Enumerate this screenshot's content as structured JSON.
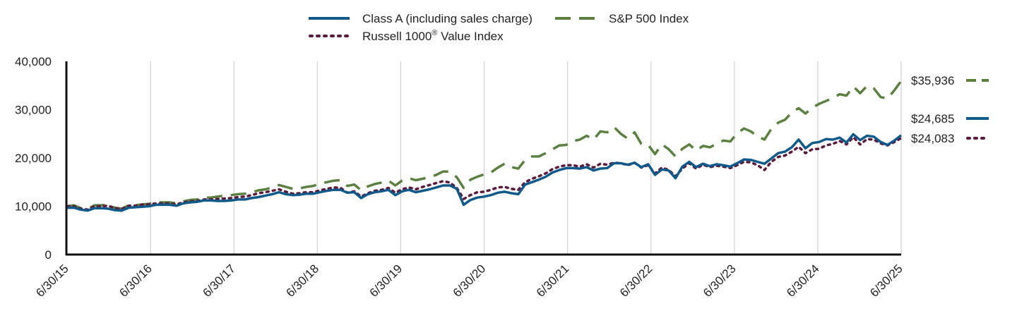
{
  "chart_data": {
    "type": "line",
    "title": "",
    "xlabel": "",
    "ylabel": "",
    "ylim": [
      0,
      40000
    ],
    "yticks": [
      0,
      10000,
      20000,
      30000,
      40000
    ],
    "ytick_labels": [
      "0",
      "10,000",
      "20,000",
      "30,000",
      "40,000"
    ],
    "xtick_labels": [
      "6/30/15",
      "6/30/16",
      "6/30/17",
      "6/30/18",
      "6/30/19",
      "6/30/20",
      "6/30/21",
      "6/30/22",
      "6/30/23",
      "6/30/24",
      "6/30/25"
    ],
    "x_period": "monthly",
    "grid": "vertical",
    "legend_position": "top-center",
    "series": [
      {
        "name": "Class A (including sales charge)",
        "color": "#0f5a8a",
        "style": "solid",
        "end_label": "$24,685",
        "values": [
          9700,
          9700,
          9300,
          9100,
          9600,
          9600,
          9500,
          9200,
          9100,
          9700,
          9800,
          9900,
          10000,
          10300,
          10300,
          10300,
          10100,
          10600,
          10800,
          10900,
          11200,
          11200,
          11100,
          11100,
          11200,
          11400,
          11400,
          11700,
          11900,
          12200,
          12500,
          12900,
          12500,
          12300,
          12400,
          12600,
          12600,
          12900,
          13200,
          13400,
          13400,
          12800,
          12900,
          11700,
          12500,
          12900,
          13100,
          13400,
          12300,
          13100,
          13400,
          12900,
          13200,
          13500,
          13900,
          14300,
          14300,
          13600,
          10300,
          11300,
          11800,
          12000,
          12300,
          12800,
          13000,
          12700,
          12500,
          14500,
          15000,
          15500,
          16100,
          17000,
          17500,
          17900,
          17900,
          17800,
          18100,
          17400,
          17800,
          17900,
          18900,
          18900,
          18600,
          19000,
          18100,
          18700,
          16500,
          17600,
          17400,
          15800,
          18200,
          19200,
          18100,
          18800,
          18300,
          18700,
          18500,
          18200,
          18900,
          19700,
          19600,
          19200,
          18800,
          19900,
          21000,
          21300,
          22200,
          23800,
          22000,
          23100,
          23300,
          23900,
          23800,
          24200,
          23200,
          24900,
          23700,
          24600,
          24400,
          23300,
          22700,
          23600,
          24685
        ]
      },
      {
        "name": "S&P 500 Index",
        "color": "#5b8040",
        "style": "dashed",
        "end_label": "$35,936",
        "values": [
          10000,
          10200,
          9600,
          9400,
          10200,
          10200,
          10300,
          9700,
          9500,
          10200,
          10200,
          10400,
          10500,
          10800,
          10800,
          10800,
          10600,
          11000,
          11300,
          11400,
          11800,
          11800,
          12000,
          12200,
          12300,
          12500,
          12600,
          12900,
          13300,
          13500,
          13900,
          14400,
          14000,
          13600,
          13700,
          14000,
          14200,
          14700,
          15000,
          15300,
          15400,
          14200,
          14500,
          13300,
          14100,
          14600,
          14900,
          15300,
          14300,
          15300,
          15800,
          15400,
          15700,
          16000,
          16500,
          17200,
          17200,
          16000,
          13800,
          15500,
          16100,
          16600,
          17000,
          18000,
          18800,
          18100,
          17800,
          19600,
          20300,
          20300,
          21000,
          21800,
          22600,
          22700,
          23500,
          23800,
          24600,
          23800,
          25500,
          25300,
          26400,
          25000,
          24000,
          25300,
          22900,
          22700,
          20800,
          22800,
          21800,
          20300,
          21900,
          22800,
          21500,
          22500,
          22200,
          22900,
          23600,
          23400,
          25100,
          26100,
          25500,
          24500,
          23800,
          26000,
          27300,
          27900,
          29400,
          30300,
          29200,
          30400,
          31200,
          31800,
          32400,
          33200,
          32900,
          34800,
          33400,
          34900,
          34400,
          32600,
          32300,
          34000,
          35936
        ]
      },
      {
        "name": "Russell 1000® Value Index",
        "color": "#5c1a3c",
        "style": "dotted",
        "end_label": "$24,083",
        "values": [
          10000,
          10000,
          9500,
          9300,
          10000,
          10000,
          10100,
          9600,
          9400,
          10100,
          10100,
          10300,
          10400,
          10600,
          10600,
          10600,
          10400,
          10800,
          11000,
          11100,
          11400,
          11400,
          11500,
          11600,
          11700,
          11900,
          12000,
          12300,
          12700,
          12900,
          13200,
          13500,
          13000,
          12600,
          12700,
          12900,
          12900,
          13300,
          13600,
          13900,
          13800,
          12800,
          13100,
          12000,
          12700,
          13200,
          13400,
          13800,
          12800,
          13500,
          13900,
          13500,
          14000,
          14400,
          14800,
          15200,
          14900,
          13800,
          11500,
          12300,
          12900,
          13000,
          13400,
          13900,
          14000,
          13600,
          13400,
          15000,
          15700,
          16200,
          16800,
          17700,
          18200,
          18500,
          18500,
          18200,
          18700,
          18000,
          18800,
          18600,
          19000,
          18900,
          18500,
          19000,
          18000,
          18500,
          16800,
          18000,
          17500,
          16200,
          17800,
          18900,
          17800,
          18600,
          18100,
          18400,
          18200,
          17900,
          18500,
          19200,
          19100,
          18500,
          17500,
          19200,
          20200,
          20500,
          21300,
          22300,
          21000,
          21800,
          21900,
          22600,
          22900,
          23500,
          22800,
          24300,
          22800,
          23900,
          23800,
          23000,
          22600,
          23300,
          24083
        ]
      }
    ]
  }
}
